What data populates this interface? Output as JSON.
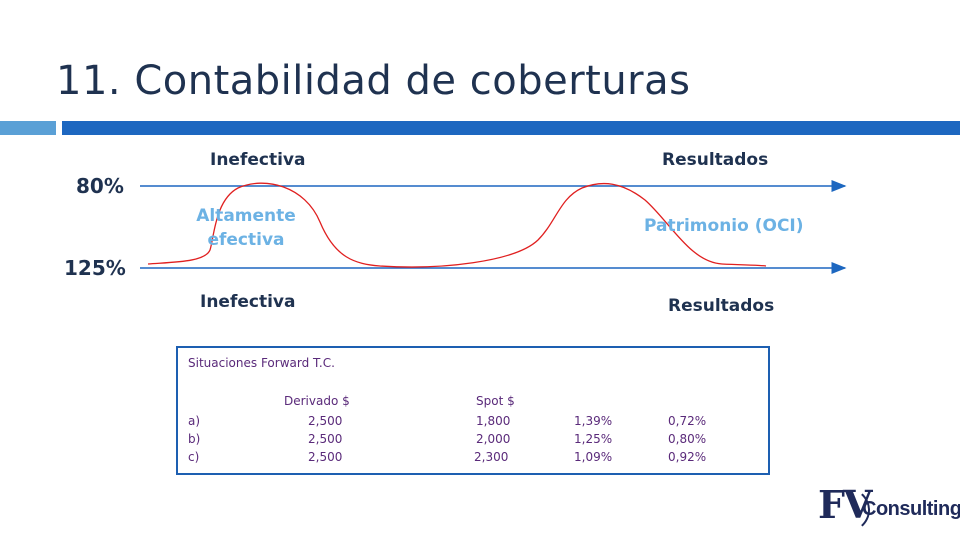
{
  "slide": {
    "title": "11. Contabilidad de coberturas"
  },
  "diagram": {
    "upper_pct": "80%",
    "lower_pct": "125%",
    "upper_left_label": "Inefectiva",
    "upper_right_label": "Resultados",
    "middle_left_label_line1": "Altamente",
    "middle_left_label_line2": "efectiva",
    "middle_right_label": "Patrimonio (OCI)",
    "lower_left_label": "Inefectiva",
    "lower_right_label": "Resultados",
    "colors": {
      "arrow": "#1d67c0",
      "curve": "#e02020",
      "light_label": "#6cb2e4"
    }
  },
  "table": {
    "caption": "Situaciones Forward T.C.",
    "headers": [
      "",
      "Derivado $",
      "Spot $",
      "",
      ""
    ],
    "rows": [
      [
        "a)",
        "2,500",
        "1,800",
        "1,39%",
        "0,72%"
      ],
      [
        "b)",
        "2,500",
        "2,000",
        "1,25%",
        "0,80%"
      ],
      [
        "c)",
        "2,500",
        "2,300",
        "1,09%",
        "0,92%"
      ]
    ]
  },
  "logo": {
    "mark": "FV",
    "text": "Consulting"
  }
}
